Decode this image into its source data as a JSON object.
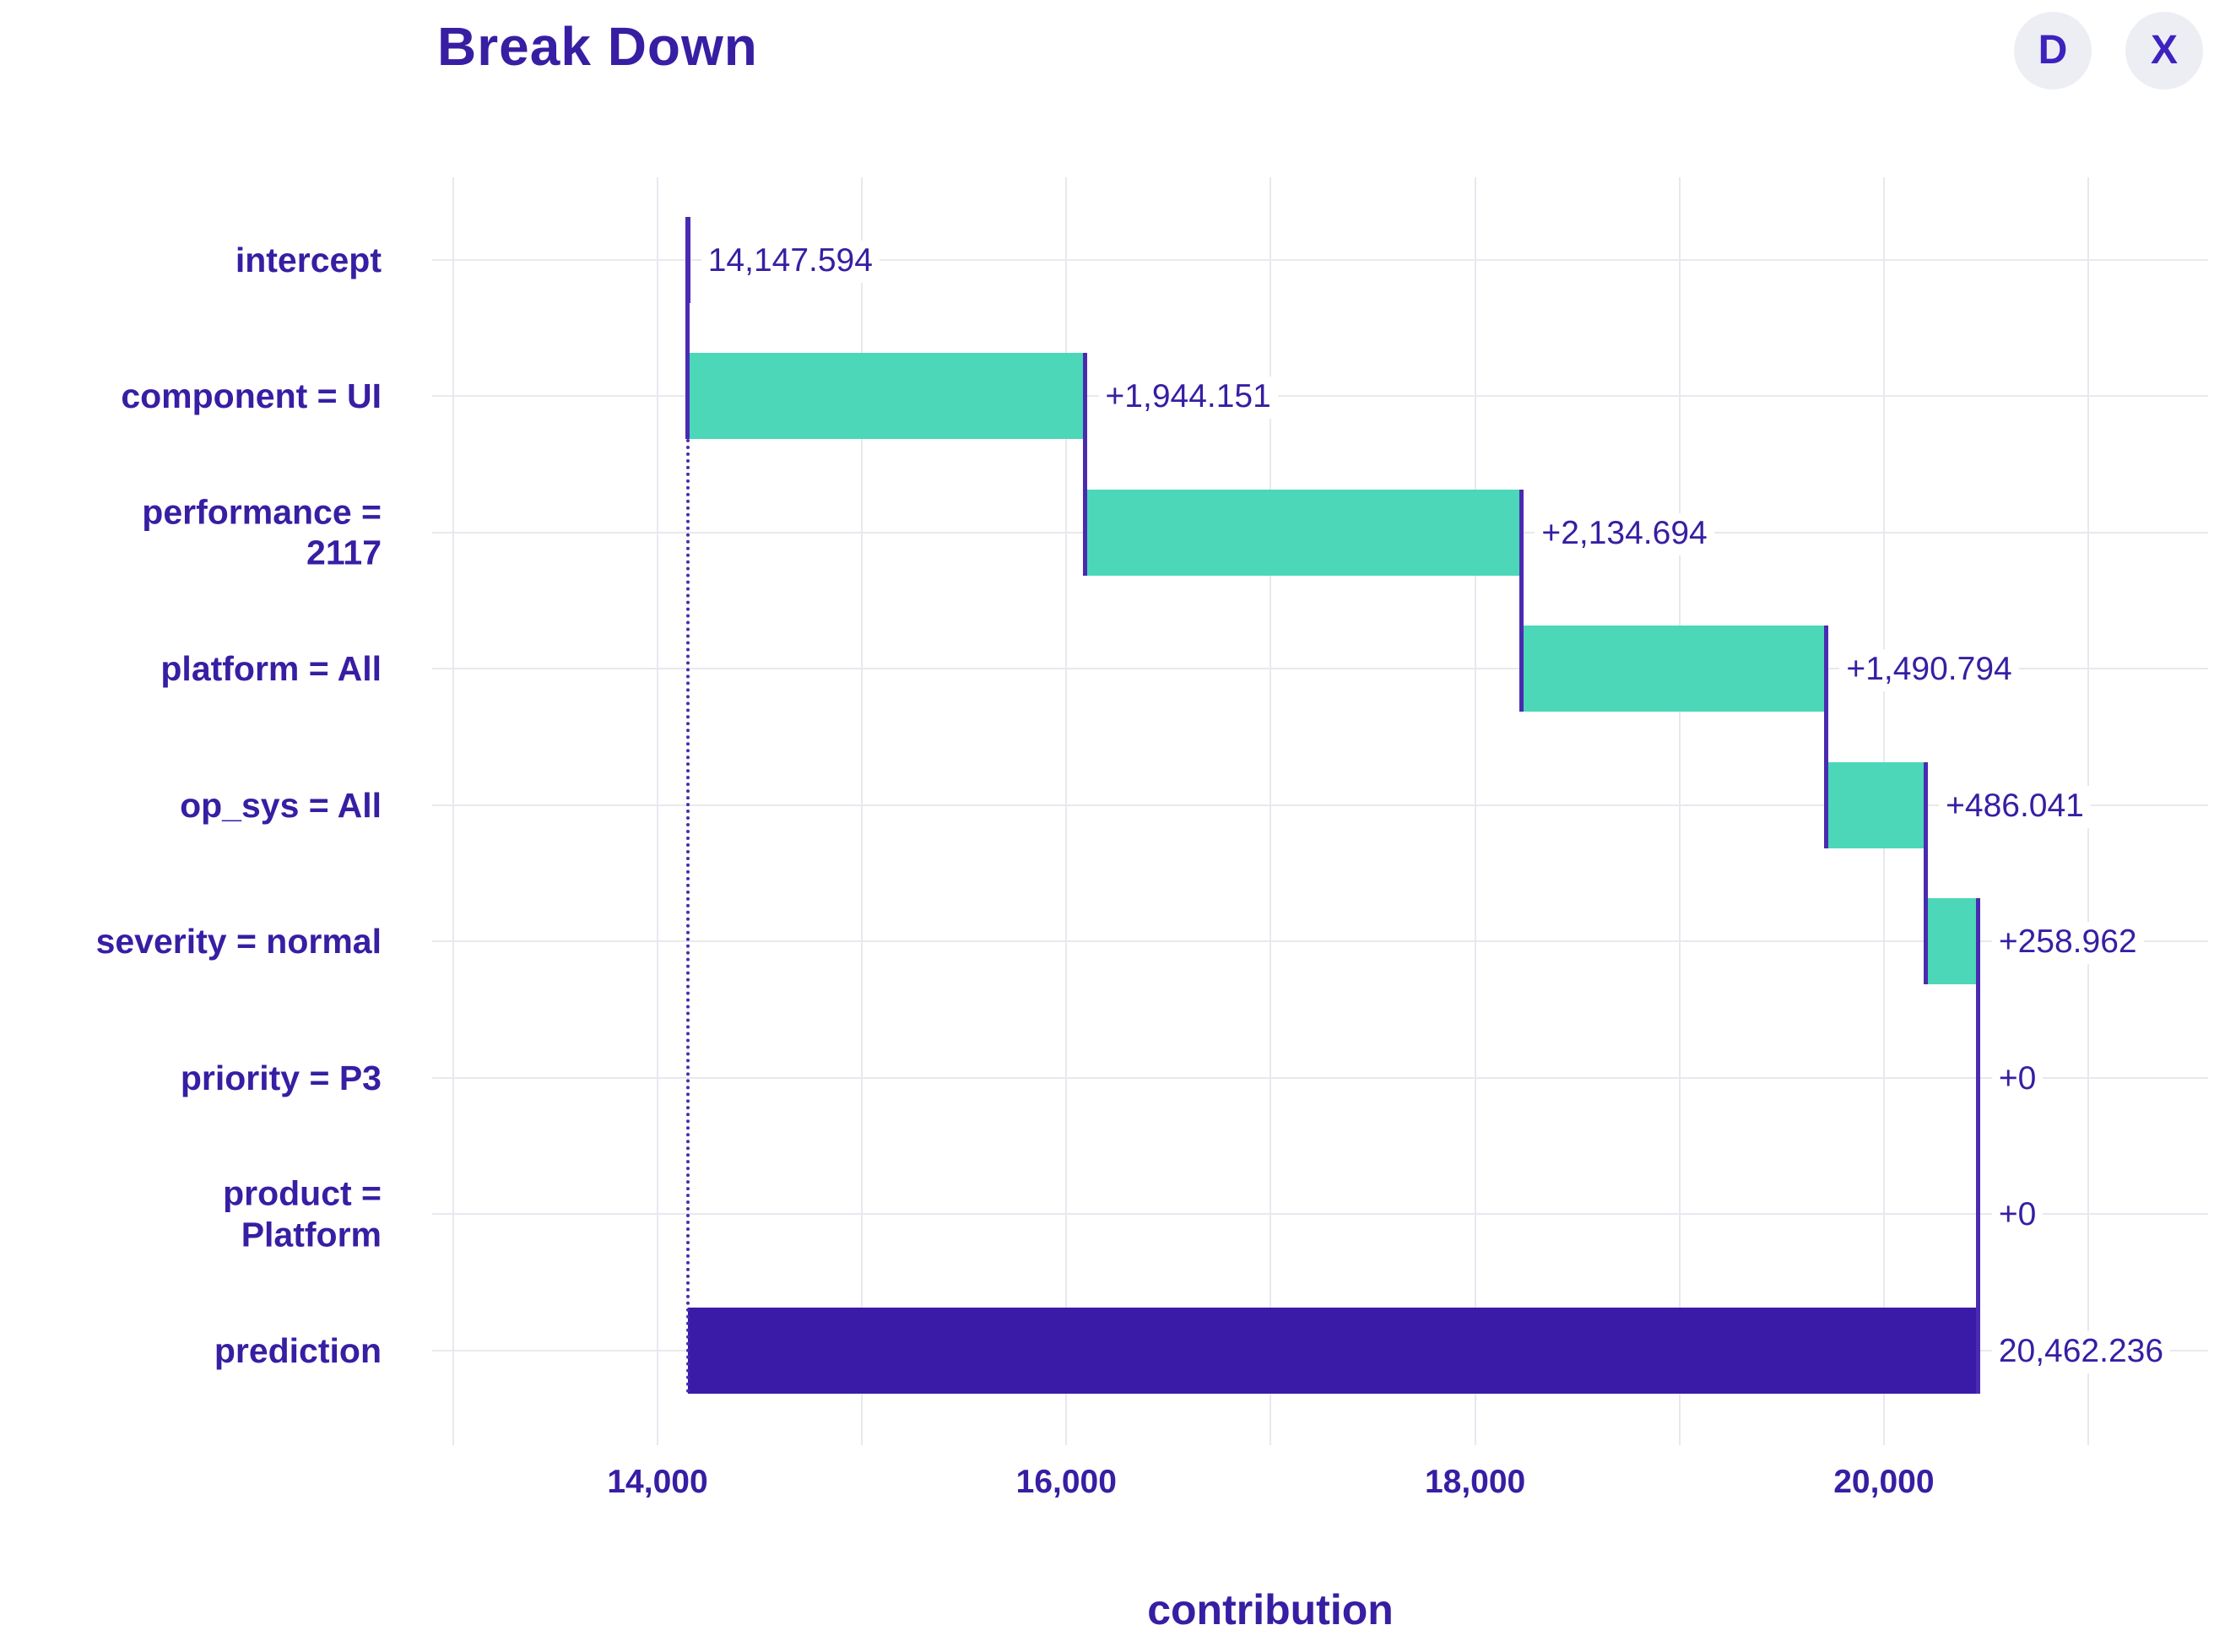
{
  "header": {
    "title": "Break Down",
    "buttons": [
      {
        "name": "d-button",
        "label": "D"
      },
      {
        "name": "x-button",
        "label": "X"
      }
    ]
  },
  "chart_data": {
    "type": "bar",
    "subtype": "horizontal-waterfall",
    "title": "Break Down",
    "xlabel": "contribution",
    "ylabel": "",
    "xlim": [
      13000,
      21000
    ],
    "grid": true,
    "grid_step": 1000,
    "x_ticks": [
      {
        "value": 14000,
        "label": "14,000"
      },
      {
        "value": 16000,
        "label": "16,000"
      },
      {
        "value": 18000,
        "label": "18,000"
      },
      {
        "value": 20000,
        "label": "20,000"
      }
    ],
    "rows": [
      {
        "kind": "intercept",
        "label": "intercept",
        "label_lines": [
          "intercept"
        ],
        "value": 14147.594,
        "value_label": "14,147.594"
      },
      {
        "kind": "positive",
        "label": "component = UI",
        "label_lines": [
          "component = UI"
        ],
        "value": 1944.151,
        "value_label": "+1,944.151"
      },
      {
        "kind": "positive",
        "label": "performance = 2117",
        "label_lines": [
          "performance =",
          "2117"
        ],
        "value": 2134.694,
        "value_label": "+2,134.694"
      },
      {
        "kind": "positive",
        "label": "platform = All",
        "label_lines": [
          "platform = All"
        ],
        "value": 1490.794,
        "value_label": "+1,490.794"
      },
      {
        "kind": "positive",
        "label": "op_sys = All",
        "label_lines": [
          "op_sys = All"
        ],
        "value": 486.041,
        "value_label": "+486.041"
      },
      {
        "kind": "positive",
        "label": "severity = normal",
        "label_lines": [
          "severity = normal"
        ],
        "value": 258.962,
        "value_label": "+258.962"
      },
      {
        "kind": "zero",
        "label": "priority = P3",
        "label_lines": [
          "priority = P3"
        ],
        "value": 0,
        "value_label": "+0"
      },
      {
        "kind": "zero",
        "label": "product = Platform",
        "label_lines": [
          "product =",
          "Platform"
        ],
        "value": 0,
        "value_label": "+0"
      },
      {
        "kind": "total",
        "label": "prediction",
        "label_lines": [
          "prediction"
        ],
        "value": 20462.236,
        "value_label": "20,462.236"
      }
    ],
    "colors": {
      "positive_bar": "#4bd7b8",
      "total_bar": "#3a1ba8",
      "connector": "#4a2bb0",
      "text": "#371ea3",
      "grid": "#e8e8ef",
      "button_bg": "#edeef4"
    }
  }
}
